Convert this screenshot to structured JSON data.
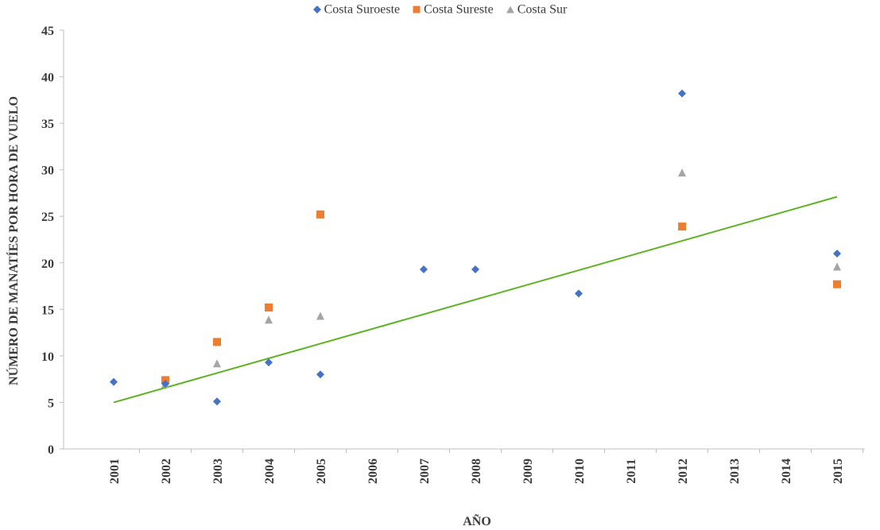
{
  "chart_data": {
    "type": "scatter",
    "title": "",
    "xlabel": "AÑO",
    "ylabel": "NÚMERO DE MANATÍES POR HORA DE VUELO",
    "ylim": [
      0,
      45
    ],
    "yticks": [
      0,
      5,
      10,
      15,
      20,
      25,
      30,
      35,
      40,
      45
    ],
    "grid": false,
    "legend_position": "top-center",
    "categories": [
      "2001",
      "2002",
      "2003",
      "2004",
      "2005",
      "2006",
      "2007",
      "2008",
      "2009",
      "2010",
      "2011",
      "2012",
      "2013",
      "2014",
      "2015"
    ],
    "series": [
      {
        "name": "Costa Suroeste",
        "marker": "diamond",
        "color": "#4472C4",
        "points": [
          {
            "x": "2001",
            "y": 7.2
          },
          {
            "x": "2002",
            "y": 7.0
          },
          {
            "x": "2003",
            "y": 5.1
          },
          {
            "x": "2004",
            "y": 9.3
          },
          {
            "x": "2005",
            "y": 8.0
          },
          {
            "x": "2007",
            "y": 19.3
          },
          {
            "x": "2008",
            "y": 19.3
          },
          {
            "x": "2010",
            "y": 16.7
          },
          {
            "x": "2012",
            "y": 38.2
          },
          {
            "x": "2015",
            "y": 21.0
          }
        ]
      },
      {
        "name": "Costa Sureste",
        "marker": "square",
        "color": "#ED7D31",
        "points": [
          {
            "x": "2002",
            "y": 7.4
          },
          {
            "x": "2003",
            "y": 11.5
          },
          {
            "x": "2004",
            "y": 15.2
          },
          {
            "x": "2005",
            "y": 25.2
          },
          {
            "x": "2012",
            "y": 23.9
          },
          {
            "x": "2015",
            "y": 17.7
          }
        ]
      },
      {
        "name": "Costa Sur",
        "marker": "triangle",
        "color": "#A5A5A5",
        "points": [
          {
            "x": "2002",
            "y": 7.0
          },
          {
            "x": "2003",
            "y": 9.2
          },
          {
            "x": "2004",
            "y": 13.9
          },
          {
            "x": "2005",
            "y": 14.3
          },
          {
            "x": "2012",
            "y": 29.7
          },
          {
            "x": "2015",
            "y": 19.6
          }
        ]
      }
    ],
    "trendline": {
      "type": "linear",
      "color": "#5BB31F",
      "start": {
        "x": "2001",
        "y": 5.0
      },
      "end": {
        "x": "2015",
        "y": 27.1
      }
    }
  }
}
